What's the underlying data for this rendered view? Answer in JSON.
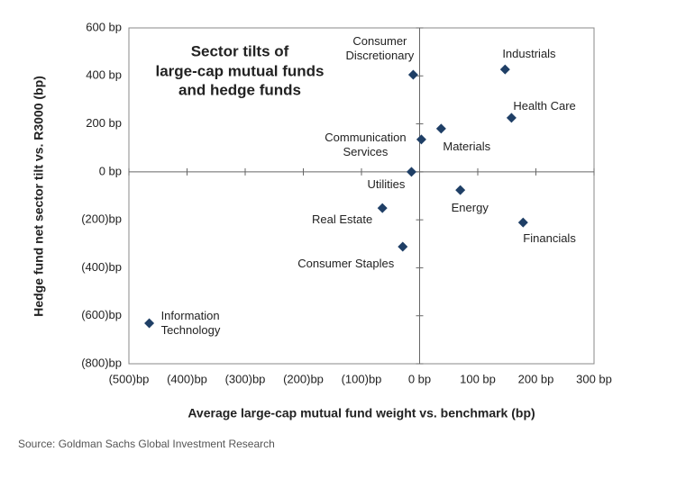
{
  "chart_data": {
    "type": "scatter",
    "title": [
      "Sector tilts of",
      "large-cap mutual funds",
      "and hedge funds"
    ],
    "x_label": "Average large-cap mutual fund weight vs. benchmark (bp)",
    "y_label": "Hedge fund net sector tilt vs. R3000 (bp)",
    "source": "Source: Goldman Sachs Global Investment Research",
    "color": "#1f3f66",
    "categories": [
      "Consumer Discretionary",
      "Industrials",
      "Health Care",
      "Materials",
      "Communication Services",
      "Utilities",
      "Energy",
      "Real Estate",
      "Financials",
      "Consumer Staples",
      "Information Technology"
    ],
    "x": [
      -11,
      147,
      158,
      37,
      3,
      -14,
      70,
      -64,
      178,
      -29,
      -465
    ],
    "values": [
      405,
      427,
      225,
      180,
      135,
      0,
      -76,
      -151,
      -211,
      -312,
      -631
    ],
    "xlim": [
      -500,
      300
    ],
    "ylim": [
      -800,
      600
    ],
    "xticks": [
      {
        "value": -500,
        "label": "(500)bp"
      },
      {
        "value": -400,
        "label": "(400)bp"
      },
      {
        "value": -300,
        "label": "(300)bp"
      },
      {
        "value": -200,
        "label": "(200)bp"
      },
      {
        "value": -100,
        "label": "(100)bp"
      },
      {
        "value": 0,
        "label": "0 bp"
      },
      {
        "value": 100,
        "label": "100 bp"
      },
      {
        "value": 200,
        "label": "200 bp"
      },
      {
        "value": 300,
        "label": "300 bp"
      }
    ],
    "yticks": [
      {
        "value": 600,
        "label": "600 bp"
      },
      {
        "value": 400,
        "label": "400 bp"
      },
      {
        "value": 200,
        "label": "200 bp"
      },
      {
        "value": 0,
        "label": "0 bp"
      },
      {
        "value": -200,
        "label": "(200)bp"
      },
      {
        "value": -400,
        "label": "(400)bp"
      },
      {
        "value": -600,
        "label": "(600)bp"
      },
      {
        "value": -800,
        "label": "(800)bp"
      }
    ]
  }
}
